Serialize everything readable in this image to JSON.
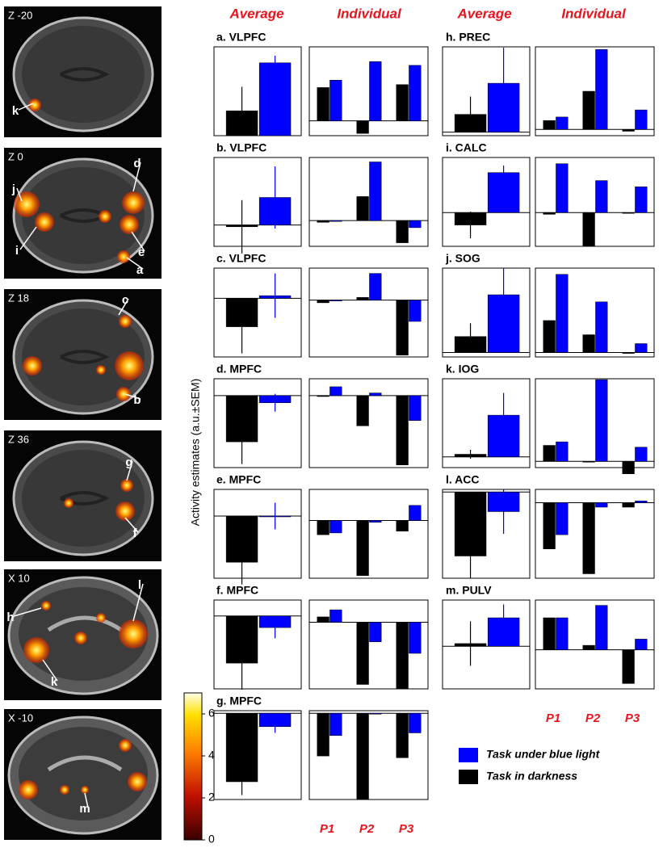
{
  "chart_data": {
    "type": "bar",
    "column_headers": [
      "Average",
      "Individual",
      "Average",
      "Individual"
    ],
    "y_label": "Activity estimates (a.u.±SEM)",
    "series": [
      {
        "name": "Task under blue light",
        "color": "#0000ff"
      },
      {
        "name": "Task in darkness",
        "color": "#000000"
      }
    ],
    "categories": [
      "P1",
      "P2",
      "P3"
    ],
    "panels": [
      {
        "title": "a. VLPFC",
        "average": {
          "ylim": [
            0,
            100
          ],
          "values": [
            82,
            28
          ],
          "errors": [
            8,
            27
          ]
        },
        "individual": {
          "ylim": [
            -20,
            100
          ],
          "values": [
            [
              55,
              80,
              75
            ],
            [
              45,
              -17,
              49
            ]
          ]
        }
      },
      {
        "title": "b. VLPFC",
        "average": {
          "ylim": [
            -24,
            76
          ],
          "values": [
            31,
            -2
          ],
          "errors": [
            35,
            30
          ]
        },
        "individual": {
          "ylim": [
            -29,
            71
          ],
          "values": [
            [
              -1,
              66,
              -8
            ],
            [
              -2,
              27,
              -25
            ]
          ]
        }
      },
      {
        "title": "c. VLPFC",
        "average": {
          "ylim": [
            -66,
            34
          ],
          "values": [
            3,
            -32
          ],
          "errors": [
            25,
            30
          ]
        },
        "individual": {
          "ylim": [
            -64,
            36
          ],
          "values": [
            [
              -1,
              30,
              -24
            ],
            [
              -3,
              3,
              -62
            ]
          ]
        }
      },
      {
        "title": "d. MPFC",
        "average": {
          "ylim": [
            -81,
            19
          ],
          "values": [
            -8,
            -52
          ],
          "errors": [
            10,
            25
          ]
        },
        "individual": {
          "ylim": [
            -81,
            19
          ],
          "values": [
            [
              10,
              3,
              -28
            ],
            [
              -1,
              -34,
              -78
            ]
          ]
        }
      },
      {
        "title": "e. MPFC",
        "average": {
          "ylim": [
            -70,
            30
          ],
          "values": [
            0,
            -52
          ],
          "errors": [
            15,
            25
          ]
        },
        "individual": {
          "ylim": [
            -65,
            35
          ],
          "values": [
            [
              -14,
              -2,
              17
            ],
            [
              -16,
              -62,
              -12
            ]
          ]
        }
      },
      {
        "title": "f. MPFC",
        "average": {
          "ylim": [
            -82,
            18
          ],
          "values": [
            -13,
            -53
          ],
          "errors": [
            12,
            30
          ]
        },
        "individual": {
          "ylim": [
            -75,
            25
          ],
          "values": [
            [
              14,
              -22,
              -35
            ],
            [
              6,
              -70,
              -75
            ]
          ]
        }
      },
      {
        "title": "g. MPFC",
        "average": {
          "ylim": [
            -97,
            3
          ],
          "values": [
            -15,
            -77
          ],
          "errors": [
            7,
            15
          ]
        },
        "individual": {
          "ylim": [
            -97,
            3
          ],
          "values": [
            [
              -25,
              0,
              -22
            ],
            [
              -48,
              -97,
              -50
            ]
          ]
        }
      },
      {
        "title": "h. PREC",
        "average": {
          "ylim": [
            -4,
            96
          ],
          "values": [
            55,
            20
          ],
          "errors": [
            40,
            20
          ]
        },
        "individual": {
          "ylim": [
            -7,
            93
          ],
          "values": [
            [
              14,
              90,
              22
            ],
            [
              10,
              43,
              -2
            ]
          ]
        }
      },
      {
        "title": "i. CALC",
        "average": {
          "ylim": [
            -38,
            62
          ],
          "values": [
            45,
            -14
          ],
          "errors": [
            8,
            15
          ]
        },
        "individual": {
          "ylim": [
            -38,
            62
          ],
          "values": [
            [
              55,
              36,
              29
            ],
            [
              -2,
              -38,
              0
            ]
          ]
        }
      },
      {
        "title": "j. SOG",
        "average": {
          "ylim": [
            -5,
            95
          ],
          "values": [
            65,
            18
          ],
          "errors": [
            30,
            15
          ]
        },
        "individual": {
          "ylim": [
            -5,
            95
          ],
          "values": [
            [
              88,
              57,
              10
            ],
            [
              36,
              20,
              -1
            ]
          ]
        }
      },
      {
        "title": "k. IOG",
        "average": {
          "ylim": [
            -12,
            88
          ],
          "values": [
            47,
            3
          ],
          "errors": [
            25,
            5
          ]
        },
        "individual": {
          "ylim": [
            -7,
            93
          ],
          "values": [
            [
              22,
              92,
              16
            ],
            [
              18,
              0,
              -14
            ]
          ]
        }
      },
      {
        "title": "l. ACC",
        "average": {
          "ylim": [
            -97,
            3
          ],
          "values": [
            -22,
            -72
          ],
          "errors": [
            25,
            25
          ]
        },
        "individual": {
          "ylim": [
            -85,
            15
          ],
          "values": [
            [
              -36,
              -5,
              2
            ],
            [
              -52,
              -80,
              -5
            ]
          ]
        }
      },
      {
        "title": "m. PULV",
        "average": {
          "ylim": [
            -48,
            52
          ],
          "values": [
            32,
            3
          ],
          "errors": [
            15,
            25
          ]
        },
        "individual": {
          "ylim": [
            -44,
            56
          ],
          "values": [
            [
              36,
              50,
              12
            ],
            [
              36,
              5,
              -38
            ]
          ]
        }
      }
    ]
  },
  "brain_images": [
    {
      "label": "Z -20",
      "markers": [
        "k"
      ]
    },
    {
      "label": "Z 0",
      "markers": [
        "j",
        "i",
        "d",
        "e",
        "a"
      ]
    },
    {
      "label": "Z 18",
      "markers": [
        "c",
        "b"
      ]
    },
    {
      "label": "Z 36",
      "markers": [
        "g",
        "f"
      ]
    },
    {
      "label": "X 10",
      "markers": [
        "h",
        "l",
        "k"
      ]
    },
    {
      "label": "X -10",
      "markers": [
        "m"
      ]
    }
  ],
  "colorbar": {
    "lim": [
      0,
      7
    ],
    "ticks": [
      0,
      2,
      4,
      6
    ]
  }
}
